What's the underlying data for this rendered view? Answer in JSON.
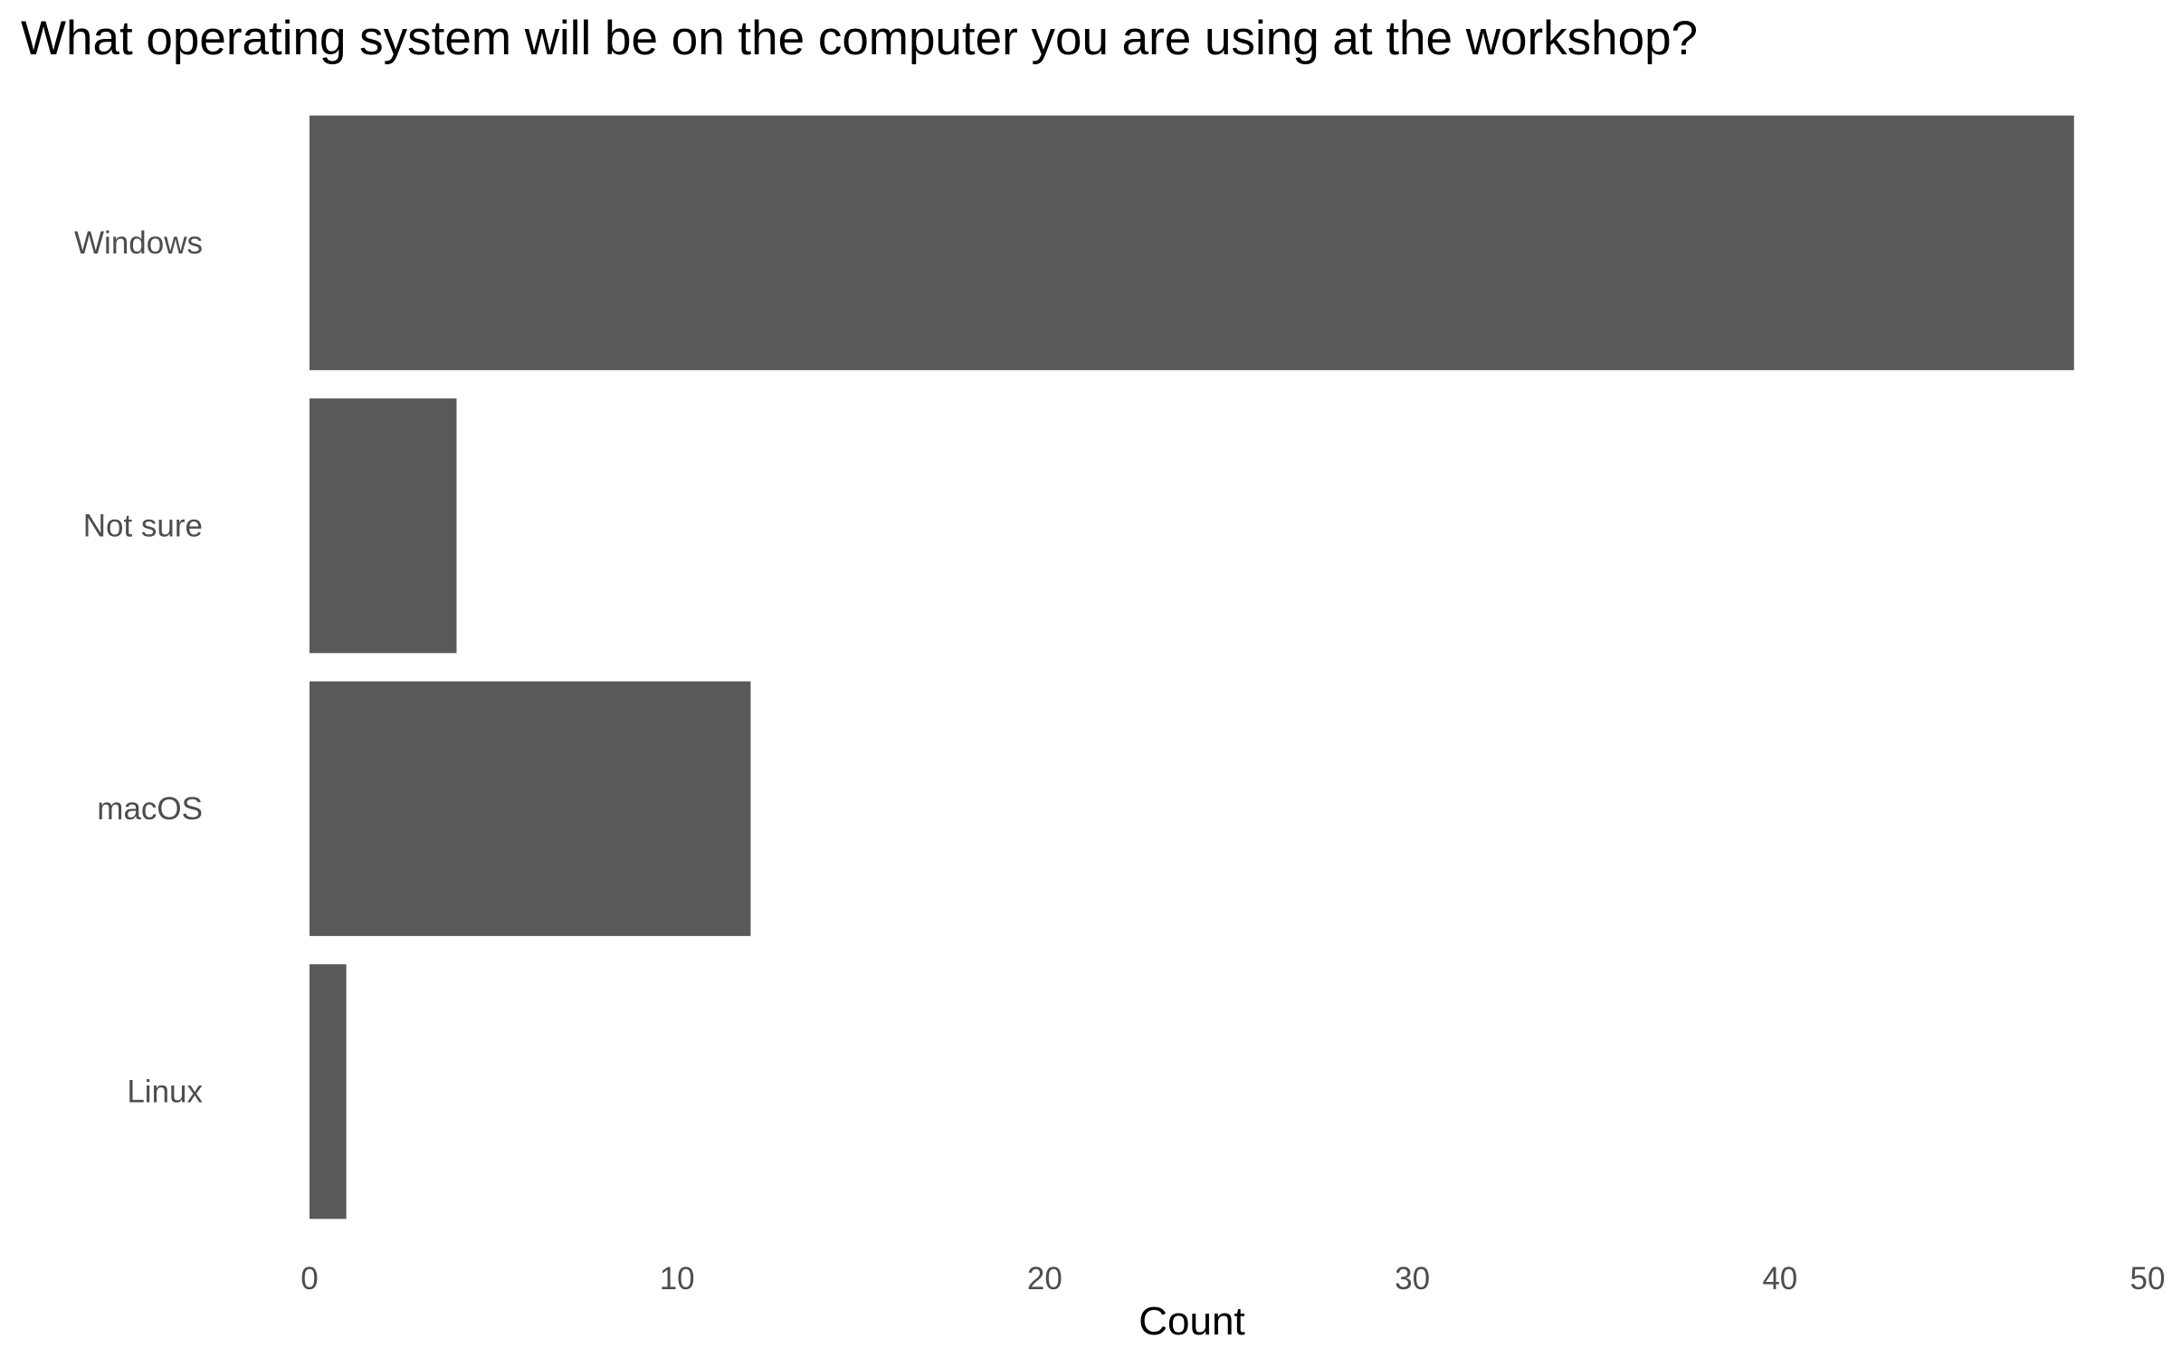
{
  "chart_data": {
    "type": "bar",
    "orientation": "horizontal",
    "title": "What operating system will be on the computer you are using at the workshop?",
    "xlabel": "Count",
    "ylabel": "",
    "categories": [
      "Windows",
      "Not sure",
      "macOS",
      "Linux"
    ],
    "values": [
      48,
      4,
      12,
      1
    ],
    "xlim": [
      0,
      50
    ],
    "x_ticks": [
      0,
      10,
      20,
      30,
      40,
      50
    ],
    "grid": false,
    "legend": "none",
    "bar_color": "#595959",
    "background_color": "#ffffff"
  }
}
